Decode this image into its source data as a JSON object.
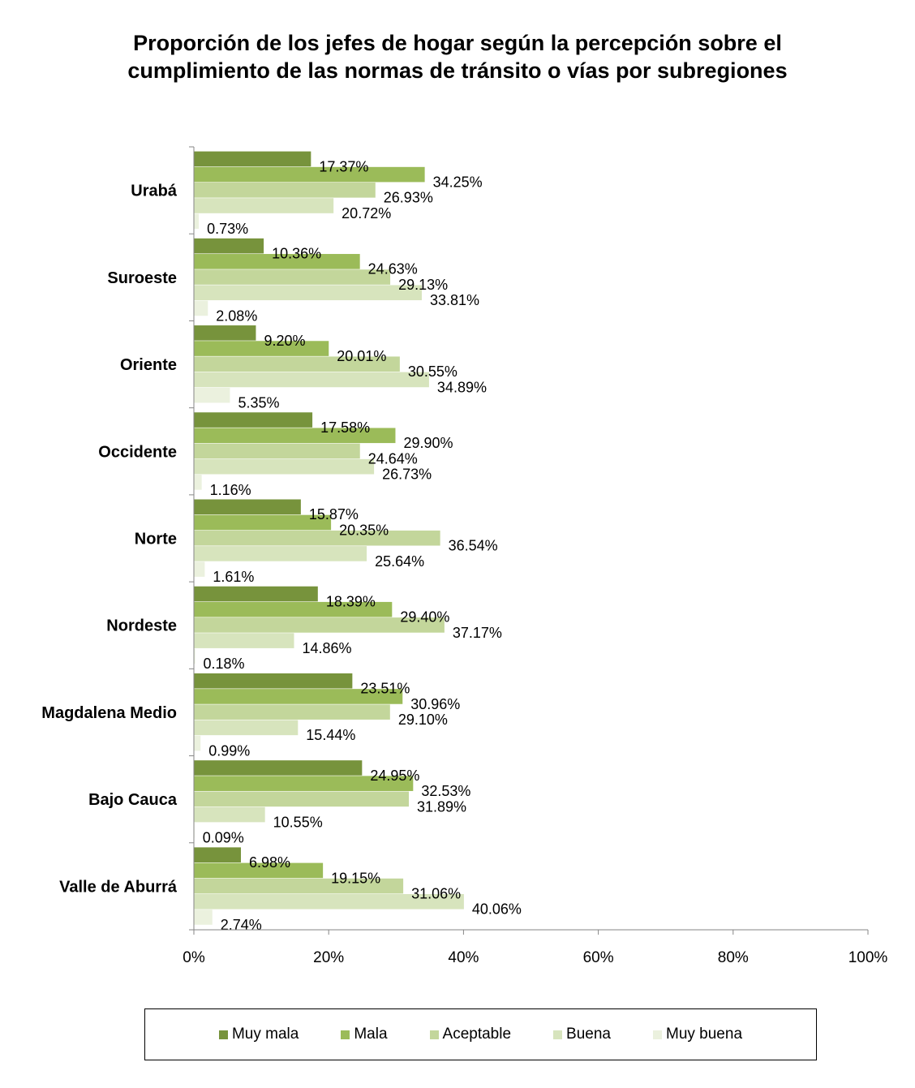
{
  "chart_data": {
    "type": "bar",
    "orientation": "horizontal",
    "title": "Proporción de los jefes de  hogar según la percepción sobre el cumplimiento de las normas de tránsito o vías por subregiones",
    "title_lines": [
      "Proporción de los jefes de  hogar según la percepción sobre el",
      "cumplimiento de las normas de tránsito o vías por subregiones"
    ],
    "xlabel": "",
    "ylabel": "",
    "xlim": [
      0,
      100
    ],
    "x_ticks": [
      "0%",
      "20%",
      "40%",
      "60%",
      "80%",
      "100%"
    ],
    "grid": false,
    "legend_position": "bottom",
    "categories": [
      "Urabá",
      "Suroeste",
      "Oriente",
      "Occidente",
      "Norte",
      "Nordeste",
      "Magdalena Medio",
      "Bajo Cauca",
      "Valle de Aburrá"
    ],
    "series": [
      {
        "name": "Muy mala",
        "color": "#77933c",
        "values": [
          17.37,
          10.36,
          9.2,
          17.58,
          15.87,
          18.39,
          23.51,
          24.95,
          6.98
        ],
        "labels": [
          "17.37%",
          "10.36%",
          "9.20%",
          "17.58%",
          "15.87%",
          "18.39%",
          "23.51%",
          "24.95%",
          "6.98%"
        ]
      },
      {
        "name": "Mala",
        "color": "#9bbb59",
        "values": [
          34.25,
          24.63,
          20.01,
          29.9,
          20.35,
          29.4,
          30.96,
          32.53,
          19.15
        ],
        "labels": [
          "34.25%",
          "24.63%",
          "20.01%",
          "29.90%",
          "20.35%",
          "29.40%",
          "30.96%",
          "32.53%",
          "19.15%"
        ]
      },
      {
        "name": "Aceptable",
        "color": "#c3d69b",
        "values": [
          26.93,
          29.13,
          30.55,
          24.64,
          36.54,
          37.17,
          29.1,
          31.89,
          31.06
        ],
        "labels": [
          "26.93%",
          "29.13%",
          "30.55%",
          "24.64%",
          "36.54%",
          "37.17%",
          "29.10%",
          "31.89%",
          "31.06%"
        ]
      },
      {
        "name": "Buena",
        "color": "#d7e4bd",
        "values": [
          20.72,
          33.81,
          34.89,
          26.73,
          25.64,
          14.86,
          15.44,
          10.55,
          40.06
        ],
        "labels": [
          "20.72%",
          "33.81%",
          "34.89%",
          "26.73%",
          "25.64%",
          "14.86%",
          "15.44%",
          "10.55%",
          "40.06%"
        ]
      },
      {
        "name": "Muy buena",
        "color": "#ebf1de",
        "values": [
          0.73,
          2.08,
          5.35,
          1.16,
          1.61,
          0.18,
          0.99,
          0.09,
          2.74
        ],
        "labels": [
          "0.73%",
          "2.08%",
          "5.35%",
          "1.16%",
          "1.61%",
          "0.18%",
          "0.99%",
          "0.09%",
          "2.74%"
        ]
      }
    ]
  }
}
